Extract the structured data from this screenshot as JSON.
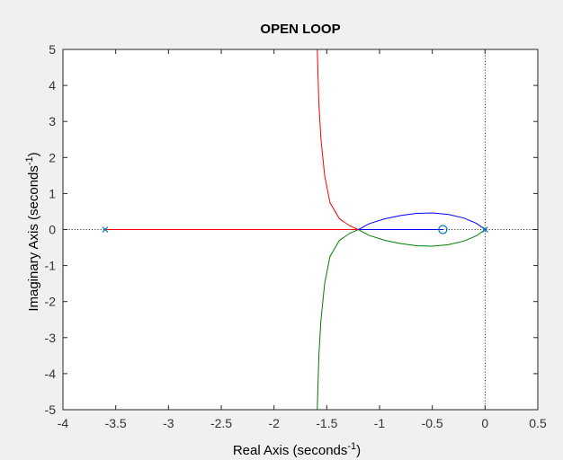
{
  "chart_data": {
    "type": "line",
    "title": "OPEN LOOP",
    "xlabel": "Real Axis (seconds",
    "ylabel": "Imaginary Axis (seconds",
    "label_exponent": "-1",
    "label_close": ")",
    "xlim": [
      -4,
      0.5
    ],
    "ylim": [
      -5,
      5
    ],
    "xticks": [
      -4,
      -3.5,
      -3,
      -2.5,
      -2,
      -1.5,
      -1,
      -0.5,
      0,
      0.5
    ],
    "yticks": [
      -5,
      -4,
      -3,
      -2,
      -1,
      0,
      1,
      2,
      3,
      4,
      5
    ],
    "grid": false,
    "series": [
      {
        "color": "#0000ff",
        "points": [
          [
            0,
            0
          ],
          [
            -0.08,
            0.17
          ],
          [
            -0.2,
            0.32
          ],
          [
            -0.35,
            0.42
          ],
          [
            -0.5,
            0.46
          ],
          [
            -0.65,
            0.45
          ],
          [
            -0.8,
            0.39
          ],
          [
            -0.95,
            0.3
          ],
          [
            -1.1,
            0.16
          ],
          [
            -1.2,
            0
          ]
        ]
      },
      {
        "color": "#007f00",
        "points": [
          [
            0,
            0
          ],
          [
            -0.08,
            -0.17
          ],
          [
            -0.2,
            -0.32
          ],
          [
            -0.35,
            -0.42
          ],
          [
            -0.5,
            -0.46
          ],
          [
            -0.65,
            -0.45
          ],
          [
            -0.8,
            -0.39
          ],
          [
            -0.95,
            -0.3
          ],
          [
            -1.1,
            -0.16
          ],
          [
            -1.2,
            0
          ],
          [
            -1.28,
            -0.1
          ],
          [
            -1.38,
            -0.3
          ],
          [
            -1.47,
            -0.75
          ],
          [
            -1.52,
            -1.5
          ],
          [
            -1.555,
            -2.5
          ],
          [
            -1.575,
            -3.5
          ],
          [
            -1.585,
            -4.5
          ],
          [
            -1.59,
            -5
          ]
        ]
      },
      {
        "color": "#ff0000",
        "points": [
          [
            -3.6,
            0
          ],
          [
            -1.2,
            0
          ],
          [
            -1.28,
            0.1
          ],
          [
            -1.38,
            0.3
          ],
          [
            -1.47,
            0.75
          ],
          [
            -1.52,
            1.5
          ],
          [
            -1.555,
            2.5
          ],
          [
            -1.575,
            3.5
          ],
          [
            -1.585,
            4.5
          ],
          [
            -1.59,
            5
          ]
        ]
      },
      {
        "color": "#0000ff",
        "points": [
          [
            -1.2,
            0
          ],
          [
            -0.4,
            0
          ]
        ]
      }
    ],
    "poles": [
      [
        -3.6,
        0
      ],
      [
        0,
        0
      ]
    ],
    "zeros": [
      [
        -0.4,
        0
      ]
    ],
    "pole_zero_color": "#0072bd"
  }
}
